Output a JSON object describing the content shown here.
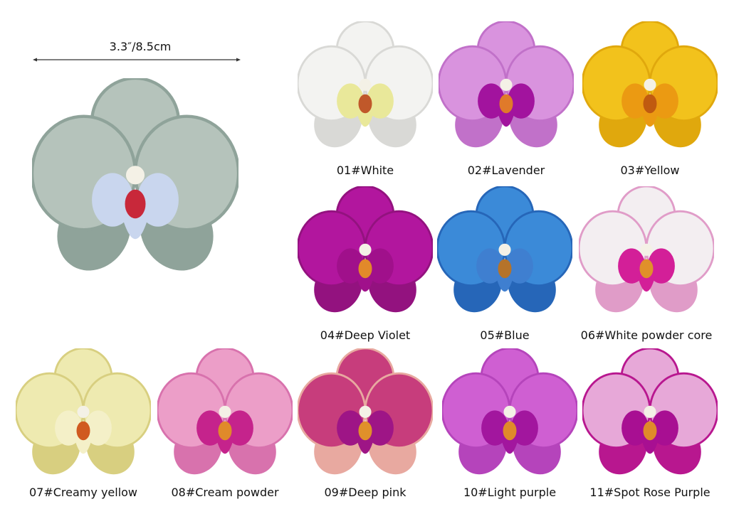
{
  "dimension": {
    "label": "3.3″/8.5cm"
  },
  "feature_flower": {
    "petal": "#b5c3bb",
    "edge": "#8fa39a",
    "lip": "#c9d6ee",
    "throat": "#c8283a"
  },
  "flowers": [
    {
      "label": "01#White",
      "petal": "#f3f3f1",
      "edge": "#d9d9d6",
      "lip": "#e9e89a",
      "throat": "#c0582a"
    },
    {
      "label": "02#Lavender",
      "petal": "#d993de",
      "edge": "#c171c9",
      "lip": "#a2139e",
      "throat": "#e07a2a"
    },
    {
      "label": "03#Yellow",
      "petal": "#f2c21c",
      "edge": "#e0a80d",
      "lip": "#eb9a12",
      "throat": "#c05a10"
    },
    {
      "label": "04#Deep Violet",
      "petal": "#b2169e",
      "edge": "#93127f",
      "lip": "#a0108b",
      "throat": "#e2892a"
    },
    {
      "label": "05#Blue",
      "petal": "#3b8ad8",
      "edge": "#2666b8",
      "lip": "#3f7fd0",
      "throat": "#b5732a"
    },
    {
      "label": "06#White powder core",
      "petal": "#f3eef1",
      "edge": "#e09cc8",
      "lip": "#d31f98",
      "throat": "#e0902a"
    },
    {
      "label": "07#Creamy yellow",
      "petal": "#eeeab0",
      "edge": "#d8cf80",
      "lip": "#f4f0c8",
      "throat": "#d05a20"
    },
    {
      "label": "08#Cream powder",
      "petal": "#ec9ec8",
      "edge": "#d872ad",
      "lip": "#c5238c",
      "throat": "#e08a2a"
    },
    {
      "label": "09#Deep pink",
      "petal": "#c73d7c",
      "edge": "#e8a9a0",
      "lip": "#9e1586",
      "throat": "#e0902a"
    },
    {
      "label": "10#Light purple",
      "petal": "#cf5fd2",
      "edge": "#b544bb",
      "lip": "#a2169e",
      "throat": "#e08a2a"
    },
    {
      "label": "11#Spot Rose Purple",
      "petal": "#e7a8d8",
      "edge": "#b8178f",
      "lip": "#a80f92",
      "throat": "#e08a2a"
    }
  ]
}
